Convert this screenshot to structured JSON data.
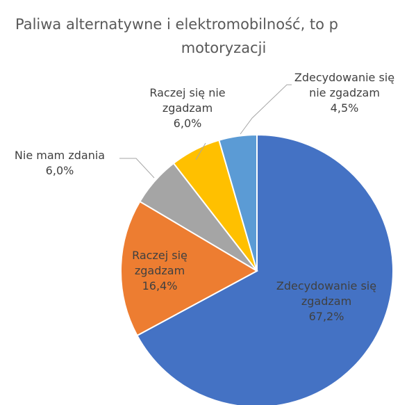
{
  "chart_data": {
    "type": "pie",
    "title": [
      "Paliwa alternatywne i elektromobilność, to p",
      "motoryzacji"
    ],
    "categories": [
      "Zdecydowanie się zgadzam",
      "Raczej się zgadzam",
      "Nie mam zdania",
      "Raczej się nie zgadzam",
      "Zdecydowanie się nie zgadzam"
    ],
    "values": [
      67.2,
      16.4,
      6.0,
      6.0,
      4.5
    ],
    "value_labels": [
      "67,2%",
      "16,4%",
      "6,0%",
      "6,0%",
      "4,5%"
    ],
    "colors": [
      "#4472c4",
      "#ed7d31",
      "#a5a5a5",
      "#ffc000",
      "#5b9bd5"
    ]
  }
}
